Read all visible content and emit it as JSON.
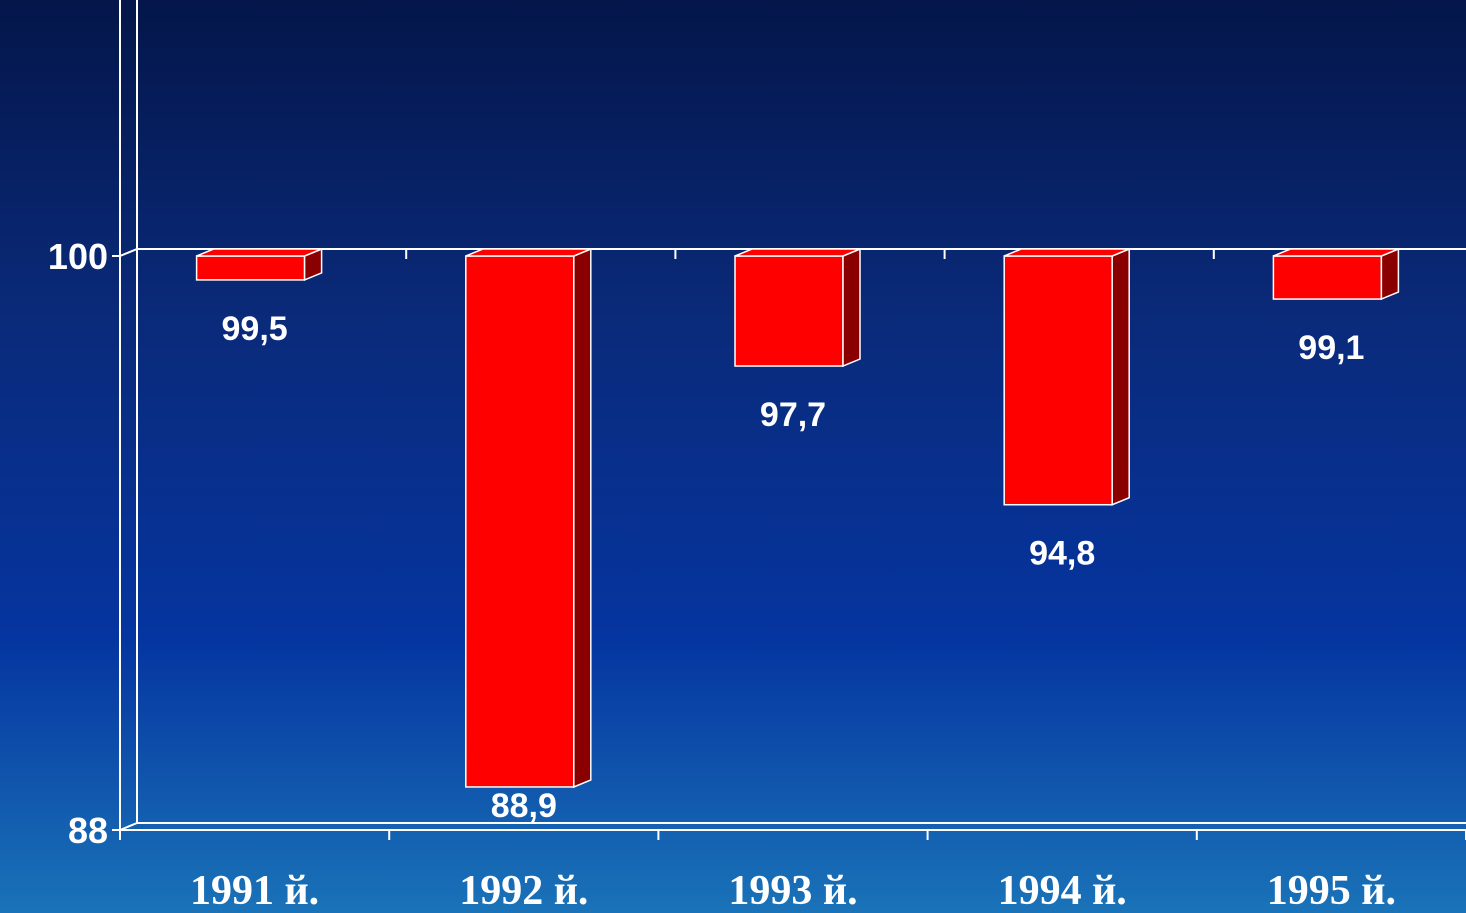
{
  "chart_data": {
    "type": "bar",
    "categories": [
      "1991 й.",
      "1992 й.",
      "1993 й.",
      "1994 й.",
      "1995 й."
    ],
    "values": [
      99.5,
      88.9,
      97.7,
      94.8,
      99.1
    ],
    "value_labels": [
      "99,5",
      "88,9",
      "97,7",
      "94,8",
      "99,1"
    ],
    "baseline": 100,
    "ylim": [
      88,
      110.4
    ],
    "y_ticks": [
      88,
      100
    ],
    "y_tick_labels": [
      "88",
      "100"
    ],
    "grid": "only at 100",
    "legend": "none",
    "style": "3d",
    "bar_color": "#ff0000",
    "bar_side_color": "#8a0000",
    "axis_color": "#ffffff",
    "background_top": "#04164a",
    "background_bottom": "#1a73b8"
  }
}
